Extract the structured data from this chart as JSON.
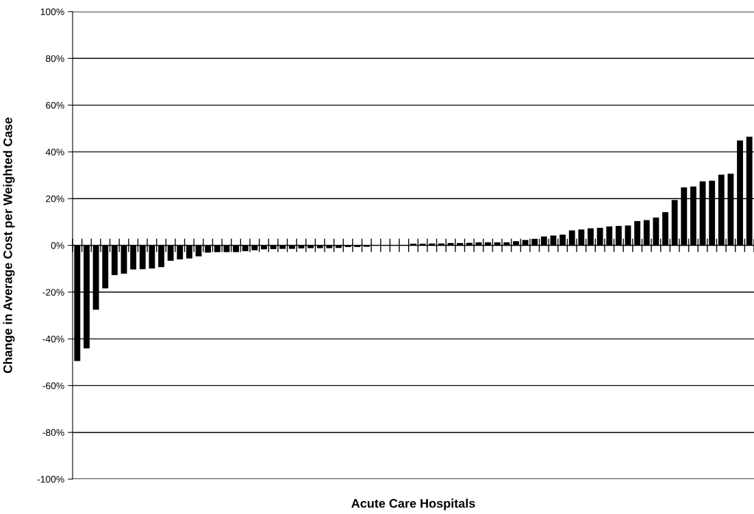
{
  "chart_data": {
    "type": "bar",
    "xlabel": "Acute Care Hospitals",
    "ylabel": "Change in Average Cost per Weighted Case",
    "categories": [
      null,
      null,
      null,
      null,
      null,
      null,
      null,
      null,
      null,
      null,
      null,
      null,
      null,
      null,
      null,
      null,
      null,
      null,
      null,
      null,
      null,
      null,
      null,
      null,
      null,
      null,
      null,
      null,
      null,
      null,
      null,
      null,
      null,
      null,
      null,
      null,
      null,
      null,
      null,
      null,
      null,
      null,
      null,
      null,
      null,
      null,
      null,
      null,
      null,
      null,
      null,
      null,
      null,
      null,
      null,
      null,
      null,
      null,
      null,
      null,
      null,
      null,
      null,
      null,
      null,
      null,
      null,
      null,
      null,
      null,
      null,
      null,
      null
    ],
    "values": [
      -49.5,
      -44.1,
      -27.5,
      -18.4,
      -12.7,
      -12.1,
      -10.3,
      -10.2,
      -9.9,
      -9.3,
      -6.6,
      -6.0,
      -5.6,
      -4.7,
      -3.1,
      -2.9,
      -2.9,
      -2.9,
      -2.5,
      -2.1,
      -1.7,
      -1.6,
      -1.5,
      -1.5,
      -1.3,
      -1.2,
      -1.2,
      -1.2,
      -1.1,
      -0.7,
      -0.7,
      -0.6,
      0,
      0,
      0,
      0,
      0.7,
      0.7,
      0.8,
      0.8,
      1.0,
      1.0,
      1.1,
      1.3,
      1.3,
      1.3,
      1.3,
      1.8,
      2.3,
      2.8,
      3.8,
      4.2,
      4.6,
      6.4,
      6.8,
      7.3,
      7.5,
      8.1,
      8.3,
      8.5,
      10.4,
      10.8,
      11.9,
      14.2,
      19.4,
      24.8,
      25.2,
      27.4,
      27.7,
      30.2,
      30.7,
      44.9,
      46.5
    ],
    "color": "#000000",
    "ylim": [
      -100,
      100
    ],
    "yticks": [
      {
        "value": -100,
        "label": "-100%"
      },
      {
        "value": -80,
        "label": "-80%"
      },
      {
        "value": -60,
        "label": "-60%"
      },
      {
        "value": -40,
        "label": "-40%"
      },
      {
        "value": -20,
        "label": "-20%"
      },
      {
        "value": 0,
        "label": "0%"
      },
      {
        "value": 20,
        "label": "20%"
      },
      {
        "value": 40,
        "label": "40%"
      },
      {
        "value": 60,
        "label": "60%"
      },
      {
        "value": 80,
        "label": "80%"
      },
      {
        "value": 100,
        "label": "100%"
      }
    ],
    "grid": "y",
    "tick_labels": "y"
  }
}
